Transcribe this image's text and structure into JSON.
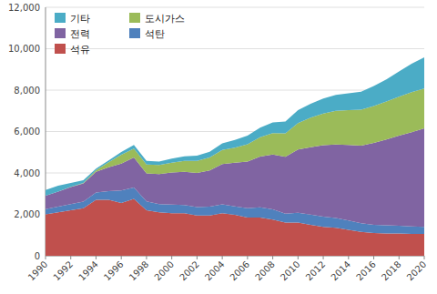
{
  "chart_data": {
    "type": "area",
    "stacked": true,
    "grid": true,
    "legend": "upper left",
    "x": [
      1990,
      1991,
      1992,
      1993,
      1994,
      1995,
      1996,
      1997,
      1998,
      1999,
      2000,
      2001,
      2002,
      2003,
      2004,
      2005,
      2006,
      2007,
      2008,
      2009,
      2010,
      2011,
      2012,
      2013,
      2014,
      2015,
      2016,
      2017,
      2018,
      2019,
      2020
    ],
    "series": [
      {
        "name": "석유",
        "color": "#c0504d",
        "values": [
          2000,
          2100,
          2200,
          2300,
          2700,
          2700,
          2550,
          2750,
          2200,
          2100,
          2050,
          2050,
          1950,
          1950,
          2050,
          1980,
          1850,
          1850,
          1750,
          1600,
          1600,
          1500,
          1400,
          1350,
          1250,
          1150,
          1100,
          1080,
          1080,
          1050,
          1050
        ]
      },
      {
        "name": "석탄",
        "color": "#4f81bd",
        "values": [
          250,
          270,
          300,
          320,
          350,
          420,
          600,
          550,
          430,
          400,
          420,
          400,
          400,
          420,
          430,
          410,
          450,
          490,
          490,
          430,
          480,
          490,
          490,
          470,
          450,
          420,
          400,
          390,
          370,
          370,
          350
        ]
      },
      {
        "name": "전력",
        "color": "#8064a2",
        "values": [
          650,
          730,
          820,
          870,
          1000,
          1150,
          1300,
          1450,
          1350,
          1450,
          1550,
          1600,
          1650,
          1750,
          1950,
          2100,
          2250,
          2450,
          2650,
          2750,
          3050,
          3250,
          3450,
          3550,
          3650,
          3750,
          3950,
          4150,
          4350,
          4550,
          4750
        ]
      },
      {
        "name": "도시가스",
        "color": "#9bbb59",
        "values": [
          0,
          0,
          15,
          30,
          80,
          250,
          430,
          430,
          430,
          430,
          480,
          530,
          580,
          630,
          680,
          730,
          830,
          930,
          1030,
          1130,
          1280,
          1430,
          1530,
          1630,
          1680,
          1730,
          1780,
          1830,
          1880,
          1930,
          1930
        ]
      },
      {
        "name": "기타",
        "color": "#4bacc6",
        "values": [
          280,
          280,
          180,
          130,
          80,
          80,
          130,
          170,
          170,
          170,
          190,
          220,
          250,
          270,
          320,
          370,
          420,
          470,
          520,
          570,
          620,
          670,
          720,
          770,
          820,
          870,
          970,
          1070,
          1220,
          1370,
          1500
        ]
      }
    ],
    "xlim": [
      1990,
      2020
    ],
    "xticks": [
      1990,
      1992,
      1994,
      1996,
      1998,
      2000,
      2002,
      2004,
      2006,
      2008,
      2010,
      2012,
      2014,
      2016,
      2018,
      2020
    ],
    "ylim": [
      0,
      12000
    ],
    "yticks": [
      0,
      {
        "value": 2000,
        "label": "2,000"
      },
      {
        "value": 4000,
        "label": "4,000"
      },
      {
        "value": 6000,
        "label": "6,000"
      },
      {
        "value": 8000,
        "label": "8,000"
      },
      {
        "value": 10000,
        "label": "10,000"
      },
      {
        "value": 12000,
        "label": "12,000"
      }
    ]
  }
}
